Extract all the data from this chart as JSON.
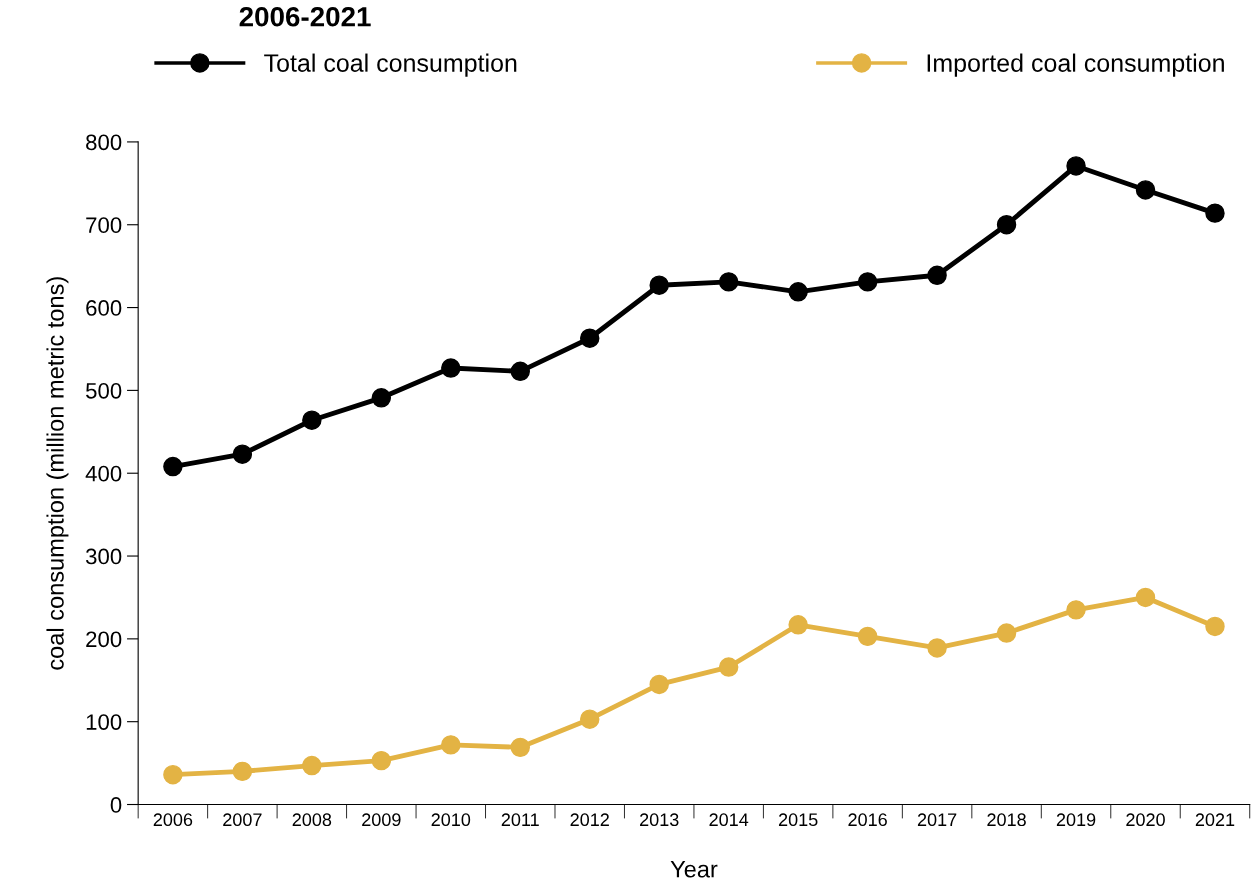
{
  "chart_data": {
    "type": "line",
    "title": "2006-2021",
    "xlabel": "Year",
    "ylabel": "coal consumption (million metric tons)",
    "categories": [
      "2006",
      "2007",
      "2008",
      "2009",
      "2010",
      "2011",
      "2012",
      "2013",
      "2014",
      "2015",
      "2016",
      "2017",
      "2018",
      "2019",
      "2020",
      "2021"
    ],
    "series": [
      {
        "name": "Total coal consumption",
        "color": "#000000",
        "values": [
          408,
          423,
          464,
          491,
          527,
          523,
          563,
          627,
          631,
          619,
          631,
          639,
          700,
          771,
          742,
          714
        ]
      },
      {
        "name": "Imported coal consumption",
        "color": "#e3b344",
        "values": [
          36,
          40,
          47,
          53,
          72,
          69,
          103,
          145,
          166,
          217,
          203,
          189,
          207,
          235,
          250,
          215
        ]
      }
    ],
    "ylim": [
      0,
      800
    ],
    "yticks": [
      0,
      100,
      200,
      300,
      400,
      500,
      600,
      700,
      800
    ],
    "grid": false,
    "legend": "top",
    "marker": "circle",
    "line_style": "solid"
  }
}
